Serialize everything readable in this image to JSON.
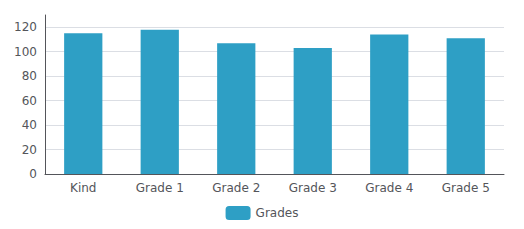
{
  "chart_data": {
    "type": "bar",
    "categories": [
      "Kind",
      "Grade 1",
      "Grade 2",
      "Grade 3",
      "Grade 4",
      "Grade 5"
    ],
    "series": [
      {
        "name": "Grades",
        "color": "#2e9fc5",
        "values": [
          115,
          118,
          107,
          103,
          114,
          111
        ]
      }
    ],
    "ylim": [
      0,
      130
    ],
    "yticks": [
      0,
      20,
      40,
      60,
      80,
      100,
      120
    ],
    "grid": true,
    "legend": "bottom"
  }
}
